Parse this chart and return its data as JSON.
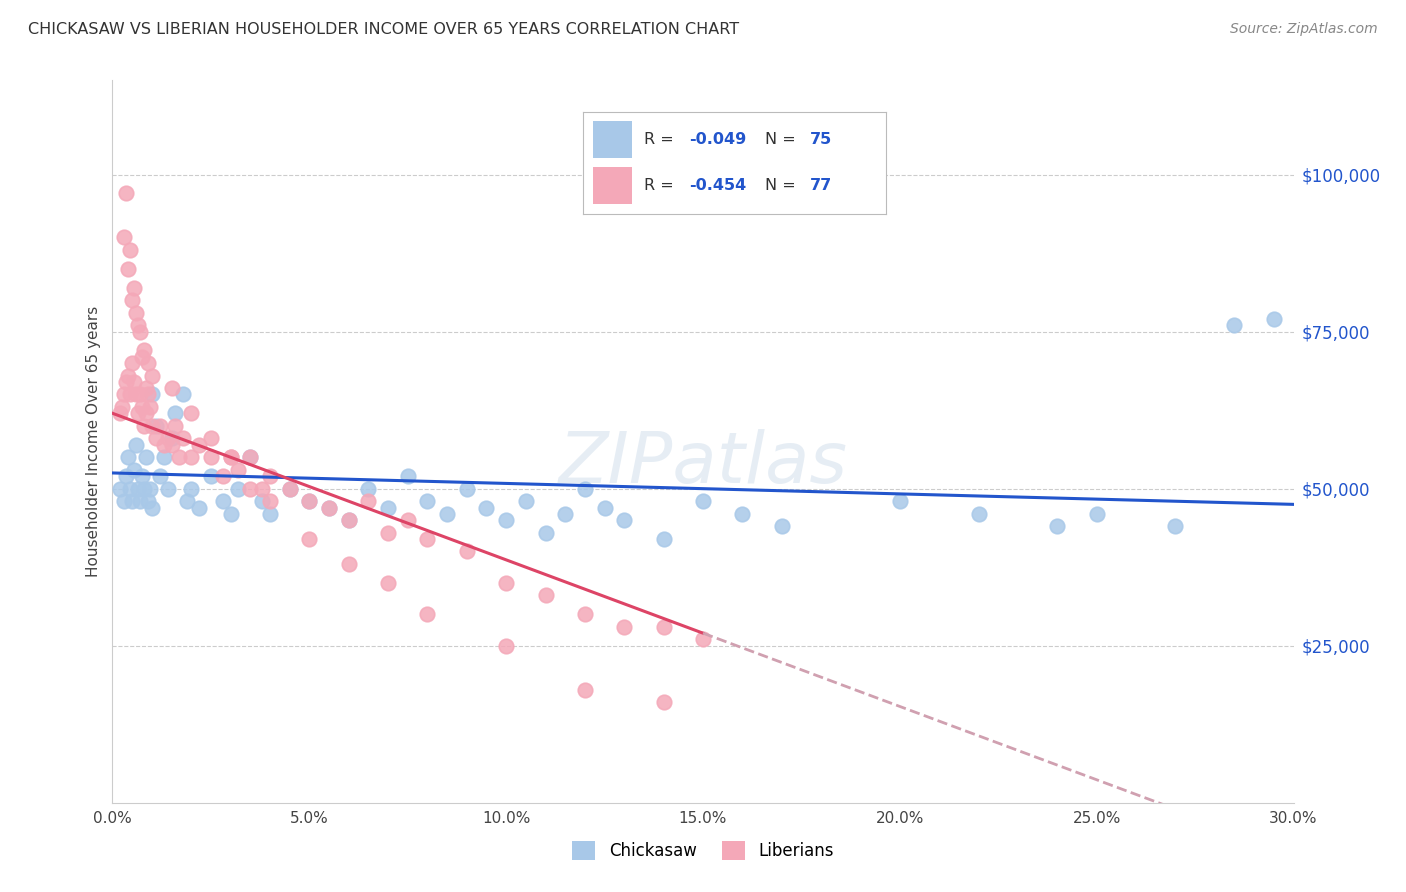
{
  "title": "CHICKASAW VS LIBERIAN HOUSEHOLDER INCOME OVER 65 YEARS CORRELATION CHART",
  "source": "Source: ZipAtlas.com",
  "ylabel": "Householder Income Over 65 years",
  "xlabel_ticks": [
    "0.0%",
    "5.0%",
    "10.0%",
    "15.0%",
    "20.0%",
    "25.0%",
    "30.0%"
  ],
  "xlabel_vals": [
    0.0,
    5.0,
    10.0,
    15.0,
    20.0,
    25.0,
    30.0
  ],
  "ytick_labels": [
    "$25,000",
    "$50,000",
    "$75,000",
    "$100,000"
  ],
  "ytick_vals": [
    25000,
    50000,
    75000,
    100000
  ],
  "xmin": 0.0,
  "xmax": 30.0,
  "ymin": 0,
  "ymax": 115000,
  "chickasaw_color": "#a8c8e8",
  "liberian_color": "#f4a8b8",
  "trend_chickasaw_color": "#2255cc",
  "trend_liberian_color": "#dd4466",
  "trend_liberian_dash_color": "#d0a0b0",
  "watermark": "ZIPatlas",
  "chickasaw_x": [
    0.2,
    0.3,
    0.35,
    0.4,
    0.45,
    0.5,
    0.55,
    0.6,
    0.65,
    0.7,
    0.75,
    0.8,
    0.85,
    0.9,
    0.95,
    1.0,
    1.0,
    1.1,
    1.2,
    1.3,
    1.4,
    1.5,
    1.6,
    1.8,
    1.9,
    2.0,
    2.2,
    2.5,
    2.8,
    3.0,
    3.2,
    3.5,
    3.8,
    4.0,
    4.5,
    5.0,
    5.5,
    6.0,
    6.5,
    7.0,
    7.5,
    8.0,
    8.5,
    9.0,
    9.5,
    10.0,
    10.5,
    11.0,
    11.5,
    12.0,
    12.5,
    13.0,
    14.0,
    15.0,
    16.0,
    17.0,
    20.0,
    22.0,
    24.0,
    25.0,
    27.0,
    28.5,
    29.5
  ],
  "chickasaw_y": [
    50000,
    48000,
    52000,
    55000,
    50000,
    48000,
    53000,
    57000,
    50000,
    48000,
    52000,
    50000,
    55000,
    48000,
    50000,
    65000,
    47000,
    60000,
    52000,
    55000,
    50000,
    58000,
    62000,
    65000,
    48000,
    50000,
    47000,
    52000,
    48000,
    46000,
    50000,
    55000,
    48000,
    46000,
    50000,
    48000,
    47000,
    45000,
    50000,
    47000,
    52000,
    48000,
    46000,
    50000,
    47000,
    45000,
    48000,
    43000,
    46000,
    50000,
    47000,
    45000,
    42000,
    48000,
    46000,
    44000,
    48000,
    46000,
    44000,
    46000,
    44000,
    76000,
    77000
  ],
  "liberian_x": [
    0.2,
    0.25,
    0.3,
    0.35,
    0.4,
    0.45,
    0.5,
    0.55,
    0.6,
    0.65,
    0.7,
    0.75,
    0.8,
    0.85,
    0.9,
    0.95,
    1.0,
    1.1,
    1.2,
    1.3,
    1.4,
    1.5,
    1.6,
    1.7,
    1.8,
    2.0,
    2.2,
    2.5,
    2.8,
    3.0,
    3.2,
    3.5,
    3.8,
    4.0,
    4.5,
    5.0,
    5.5,
    6.0,
    6.5,
    7.0,
    7.5,
    8.0,
    9.0,
    10.0,
    11.0,
    12.0,
    13.0,
    14.0,
    15.0,
    0.3,
    0.4,
    0.5,
    0.6,
    0.7,
    0.8,
    0.9,
    1.0,
    1.5,
    2.0,
    2.5,
    3.0,
    3.5,
    4.0,
    5.0,
    6.0,
    7.0,
    8.0,
    10.0,
    12.0,
    14.0,
    0.35,
    0.45,
    0.55,
    0.65,
    0.75,
    0.85
  ],
  "liberian_y": [
    62000,
    63000,
    65000,
    67000,
    68000,
    65000,
    70000,
    67000,
    65000,
    62000,
    65000,
    63000,
    60000,
    62000,
    65000,
    63000,
    60000,
    58000,
    60000,
    57000,
    58000,
    57000,
    60000,
    55000,
    58000,
    55000,
    57000,
    55000,
    52000,
    55000,
    53000,
    55000,
    50000,
    52000,
    50000,
    48000,
    47000,
    45000,
    48000,
    43000,
    45000,
    42000,
    40000,
    35000,
    33000,
    30000,
    28000,
    28000,
    26000,
    90000,
    85000,
    80000,
    78000,
    75000,
    72000,
    70000,
    68000,
    66000,
    62000,
    58000,
    55000,
    50000,
    48000,
    42000,
    38000,
    35000,
    30000,
    25000,
    18000,
    16000,
    97000,
    88000,
    82000,
    76000,
    71000,
    66000
  ]
}
